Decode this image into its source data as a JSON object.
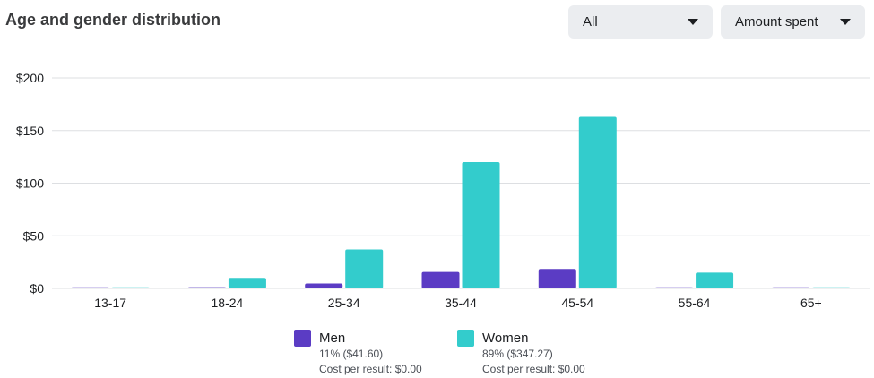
{
  "header": {
    "title": "Age and gender distribution"
  },
  "filters": {
    "audience": {
      "selected": "All"
    },
    "metric": {
      "selected": "Amount spent"
    }
  },
  "colors": {
    "men": "#5b3cc4",
    "women": "#33cccc",
    "grid": "#dddfe2",
    "axis_text": "#1c1e21"
  },
  "legend": {
    "men": {
      "label": "Men",
      "share": "11% ($41.60)",
      "cost": "Cost per result: $0.00"
    },
    "women": {
      "label": "Women",
      "share": "89% ($347.27)",
      "cost": "Cost per result: $0.00"
    }
  },
  "chart_data": {
    "type": "bar",
    "categories": [
      "13-17",
      "18-24",
      "25-34",
      "35-44",
      "45-54",
      "55-64",
      "65+"
    ],
    "series": [
      {
        "name": "Men",
        "values": [
          0.5,
          1.2,
          4.7,
          15.6,
          18.5,
          0.6,
          0.5
        ]
      },
      {
        "name": "Women",
        "values": [
          0.5,
          10.0,
          37.0,
          120.0,
          163.0,
          15.0,
          0.7
        ]
      }
    ],
    "yticks": [
      "$0",
      "$50",
      "$100",
      "$150",
      "$200"
    ],
    "ylim": [
      0,
      200
    ],
    "grid": true
  }
}
